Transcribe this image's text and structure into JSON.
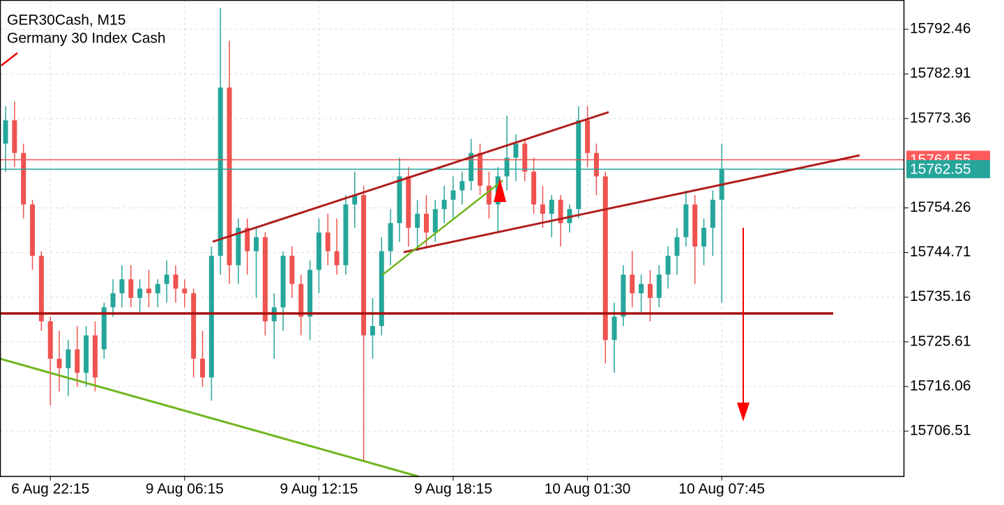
{
  "chart_data": {
    "type": "candlestick",
    "title": "GER30Cash, M15",
    "subtitle": "Germany 30 Index Cash",
    "categories": [
      null,
      null,
      null,
      null,
      null,
      "6 Aug 22:15",
      null,
      null,
      null,
      null,
      null,
      null,
      null,
      null,
      null,
      null,
      null,
      null,
      null,
      null,
      "9 Aug 06:15",
      null,
      null,
      null,
      null,
      null,
      null,
      null,
      null,
      null,
      null,
      null,
      null,
      null,
      null,
      "9 Aug 12:15",
      null,
      null,
      null,
      null,
      null,
      null,
      null,
      null,
      null,
      null,
      null,
      null,
      null,
      null,
      "9 Aug 18:15",
      null,
      null,
      null,
      null,
      null,
      null,
      null,
      null,
      null,
      null,
      null,
      null,
      null,
      null,
      "10 Aug 01:30",
      null,
      null,
      null,
      null,
      null,
      null,
      null,
      null,
      null,
      null,
      null,
      null,
      null,
      null,
      "10 Aug 07:45"
    ],
    "open": [
      15768,
      15773,
      15766,
      15755,
      15744,
      15730,
      15722,
      15720,
      15724,
      15719,
      15727,
      15724,
      15733,
      15736,
      15739,
      15735,
      15737,
      15736,
      15738,
      15740,
      15737,
      15736,
      15722,
      15718,
      15744,
      15780,
      15742,
      15750,
      15745,
      15748,
      15730,
      15733,
      15744,
      15738,
      15731,
      15741,
      15749,
      15745,
      15742,
      15755,
      15757,
      15727,
      15729,
      15745,
      15751,
      15761,
      15750,
      15753,
      15749,
      15754,
      15756,
      15758,
      15760,
      15766,
      15759,
      15755,
      15761,
      15765,
      15768,
      15762,
      15755,
      15753,
      15756,
      15751,
      15754,
      15773,
      15766,
      15761,
      15726,
      15731,
      15740,
      15736,
      15738,
      15735,
      15740,
      15744,
      15748,
      15755,
      15746,
      15750,
      15756
    ],
    "high": [
      15776,
      15777,
      15768,
      15756,
      15745,
      15731,
      15728,
      15726,
      15729,
      15729,
      15730,
      15734,
      15739,
      15742,
      15742,
      15739,
      15741,
      15739,
      15743,
      15742,
      15739,
      15737,
      15728,
      15746,
      15797,
      15790,
      15752,
      15752,
      15750,
      15749,
      15736,
      15745,
      15746,
      15740,
      15743,
      15752,
      15753,
      15752,
      15757,
      15762,
      15759,
      15735,
      15748,
      15754,
      15765,
      15763,
      15756,
      15757,
      15756,
      15759,
      15761,
      15762,
      15769,
      15768,
      15762,
      15763,
      15774,
      15770,
      15769,
      15765,
      15759,
      15757,
      15757,
      15755,
      15776,
      15776,
      15768,
      15762,
      15734,
      15742,
      15745,
      15740,
      15741,
      15742,
      15746,
      15750,
      15758,
      15757,
      15752,
      15758,
      15768
    ],
    "low": [
      15762,
      15763,
      15752,
      15741,
      15728,
      15712,
      15715,
      15714,
      15716,
      15716,
      15715,
      15722,
      15731,
      15733,
      15733,
      15732,
      15733,
      15733,
      15734,
      15734,
      15733,
      15718,
      15716,
      15713,
      15740,
      15738,
      15738,
      15740,
      15735,
      15727,
      15722,
      15728,
      15735,
      15727,
      15726,
      15736,
      15742,
      15740,
      15740,
      15750,
      15700,
      15722,
      15727,
      15742,
      15747,
      15746,
      15745,
      15746,
      15747,
      15751,
      15752,
      15755,
      15758,
      15757,
      15752,
      15749,
      15758,
      15760,
      15760,
      15753,
      15750,
      15748,
      15746,
      15749,
      15752,
      15763,
      15757,
      15721,
      15719,
      15729,
      15733,
      15732,
      15730,
      15733,
      15737,
      15740,
      15746,
      15738,
      15742,
      15744,
      15734
    ],
    "close": [
      15773,
      15766,
      15755,
      15744,
      15730,
      15722,
      15720,
      15724,
      15719,
      15727,
      15718,
      15733,
      15736,
      15739,
      15735,
      15737,
      15736,
      15738,
      15740,
      15737,
      15736,
      15722,
      15718,
      15744,
      15780,
      15742,
      15750,
      15745,
      15748,
      15730,
      15733,
      15744,
      15738,
      15731,
      15741,
      15749,
      15745,
      15742,
      15755,
      15757,
      15727,
      15729,
      15745,
      15751,
      15761,
      15750,
      15753,
      15749,
      15754,
      15756,
      15758,
      15760,
      15766,
      15759,
      15755,
      15761,
      15765,
      15768,
      15762,
      15755,
      15753,
      15756,
      15751,
      15754,
      15773,
      15766,
      15761,
      15726,
      15731,
      15740,
      15736,
      15738,
      15735,
      15740,
      15744,
      15748,
      15755,
      15746,
      15750,
      15756,
      15762.55
    ],
    "up_color": "#26a69a",
    "down_color": "#ef5350",
    "ask_line": 15764.55,
    "bid_line": 15762.55,
    "ylim": [
      15696.83,
      15798.72
    ],
    "yticks": [
      15792.46,
      15782.91,
      15773.36,
      15754.26,
      15744.71,
      15735.16,
      15725.61,
      15716.06,
      15706.51
    ],
    "grid": true
  }
}
